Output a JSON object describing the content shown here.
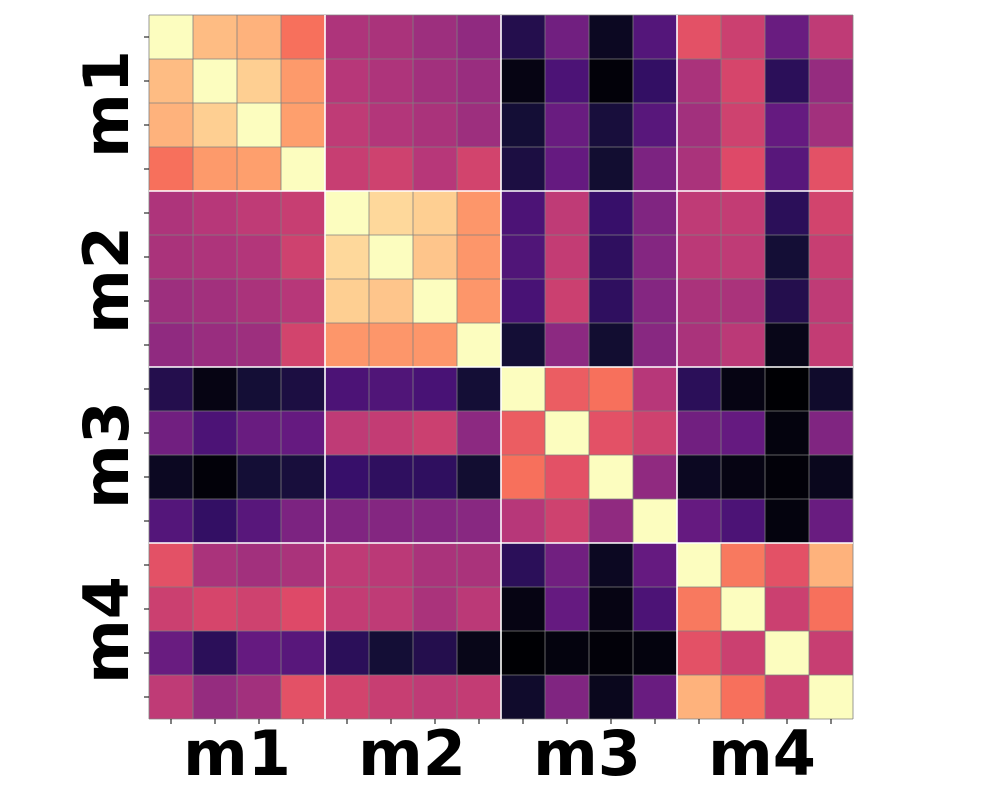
{
  "chart_data": {
    "type": "heatmap",
    "colormap": "magma",
    "vmin": 0,
    "vmax": 1,
    "groups": [
      "m1",
      "m2",
      "m3",
      "m4"
    ],
    "group_size": 4,
    "ylabels": [
      "m1",
      "m2",
      "m3",
      "m4"
    ],
    "xlabels": [
      "m1",
      "m2",
      "m3",
      "m4"
    ],
    "grid_line_color": "#808080",
    "group_separator_color": "#ffffff",
    "matrix": [
      [
        1.0,
        0.86,
        0.84,
        0.7,
        0.48,
        0.47,
        0.44,
        0.41,
        0.14,
        0.33,
        0.06,
        0.26,
        0.62,
        0.55,
        0.31,
        0.52
      ],
      [
        0.86,
        1.0,
        0.9,
        0.79,
        0.5,
        0.48,
        0.45,
        0.43,
        0.03,
        0.24,
        0.01,
        0.18,
        0.47,
        0.58,
        0.16,
        0.42
      ],
      [
        0.84,
        0.9,
        1.0,
        0.8,
        0.52,
        0.49,
        0.47,
        0.44,
        0.1,
        0.31,
        0.11,
        0.27,
        0.45,
        0.56,
        0.3,
        0.45
      ],
      [
        0.7,
        0.79,
        0.8,
        1.0,
        0.54,
        0.56,
        0.5,
        0.57,
        0.12,
        0.3,
        0.09,
        0.36,
        0.47,
        0.6,
        0.27,
        0.62
      ],
      [
        0.48,
        0.5,
        0.52,
        0.54,
        1.0,
        0.92,
        0.9,
        0.78,
        0.24,
        0.52,
        0.19,
        0.37,
        0.52,
        0.53,
        0.16,
        0.57
      ],
      [
        0.47,
        0.48,
        0.49,
        0.56,
        0.92,
        1.0,
        0.88,
        0.78,
        0.25,
        0.53,
        0.17,
        0.38,
        0.51,
        0.52,
        0.1,
        0.54
      ],
      [
        0.44,
        0.45,
        0.47,
        0.5,
        0.9,
        0.88,
        1.0,
        0.78,
        0.23,
        0.55,
        0.17,
        0.38,
        0.47,
        0.47,
        0.14,
        0.52
      ],
      [
        0.41,
        0.43,
        0.44,
        0.57,
        0.78,
        0.78,
        0.78,
        1.0,
        0.1,
        0.4,
        0.09,
        0.39,
        0.47,
        0.51,
        0.04,
        0.53
      ],
      [
        0.14,
        0.03,
        0.1,
        0.12,
        0.24,
        0.25,
        0.23,
        0.1,
        1.0,
        0.65,
        0.7,
        0.5,
        0.16,
        0.03,
        0.0,
        0.08
      ],
      [
        0.33,
        0.24,
        0.31,
        0.3,
        0.52,
        0.53,
        0.55,
        0.4,
        0.65,
        1.0,
        0.62,
        0.56,
        0.33,
        0.3,
        0.02,
        0.37
      ],
      [
        0.06,
        0.01,
        0.1,
        0.11,
        0.19,
        0.17,
        0.17,
        0.09,
        0.7,
        0.62,
        1.0,
        0.41,
        0.06,
        0.03,
        0.01,
        0.05
      ],
      [
        0.26,
        0.18,
        0.27,
        0.36,
        0.37,
        0.38,
        0.38,
        0.39,
        0.5,
        0.56,
        0.41,
        1.0,
        0.3,
        0.24,
        0.02,
        0.31
      ],
      [
        0.62,
        0.47,
        0.45,
        0.47,
        0.52,
        0.51,
        0.47,
        0.47,
        0.16,
        0.33,
        0.06,
        0.3,
        1.0,
        0.72,
        0.62,
        0.84
      ],
      [
        0.55,
        0.58,
        0.56,
        0.6,
        0.53,
        0.52,
        0.47,
        0.51,
        0.03,
        0.3,
        0.03,
        0.24,
        0.72,
        1.0,
        0.55,
        0.7
      ],
      [
        0.31,
        0.16,
        0.3,
        0.27,
        0.16,
        0.1,
        0.14,
        0.04,
        0.0,
        0.02,
        0.01,
        0.02,
        0.62,
        0.55,
        1.0,
        0.54
      ],
      [
        0.52,
        0.42,
        0.45,
        0.62,
        0.57,
        0.54,
        0.52,
        0.53,
        0.08,
        0.37,
        0.05,
        0.31,
        0.84,
        0.7,
        0.54,
        1.0
      ]
    ]
  }
}
